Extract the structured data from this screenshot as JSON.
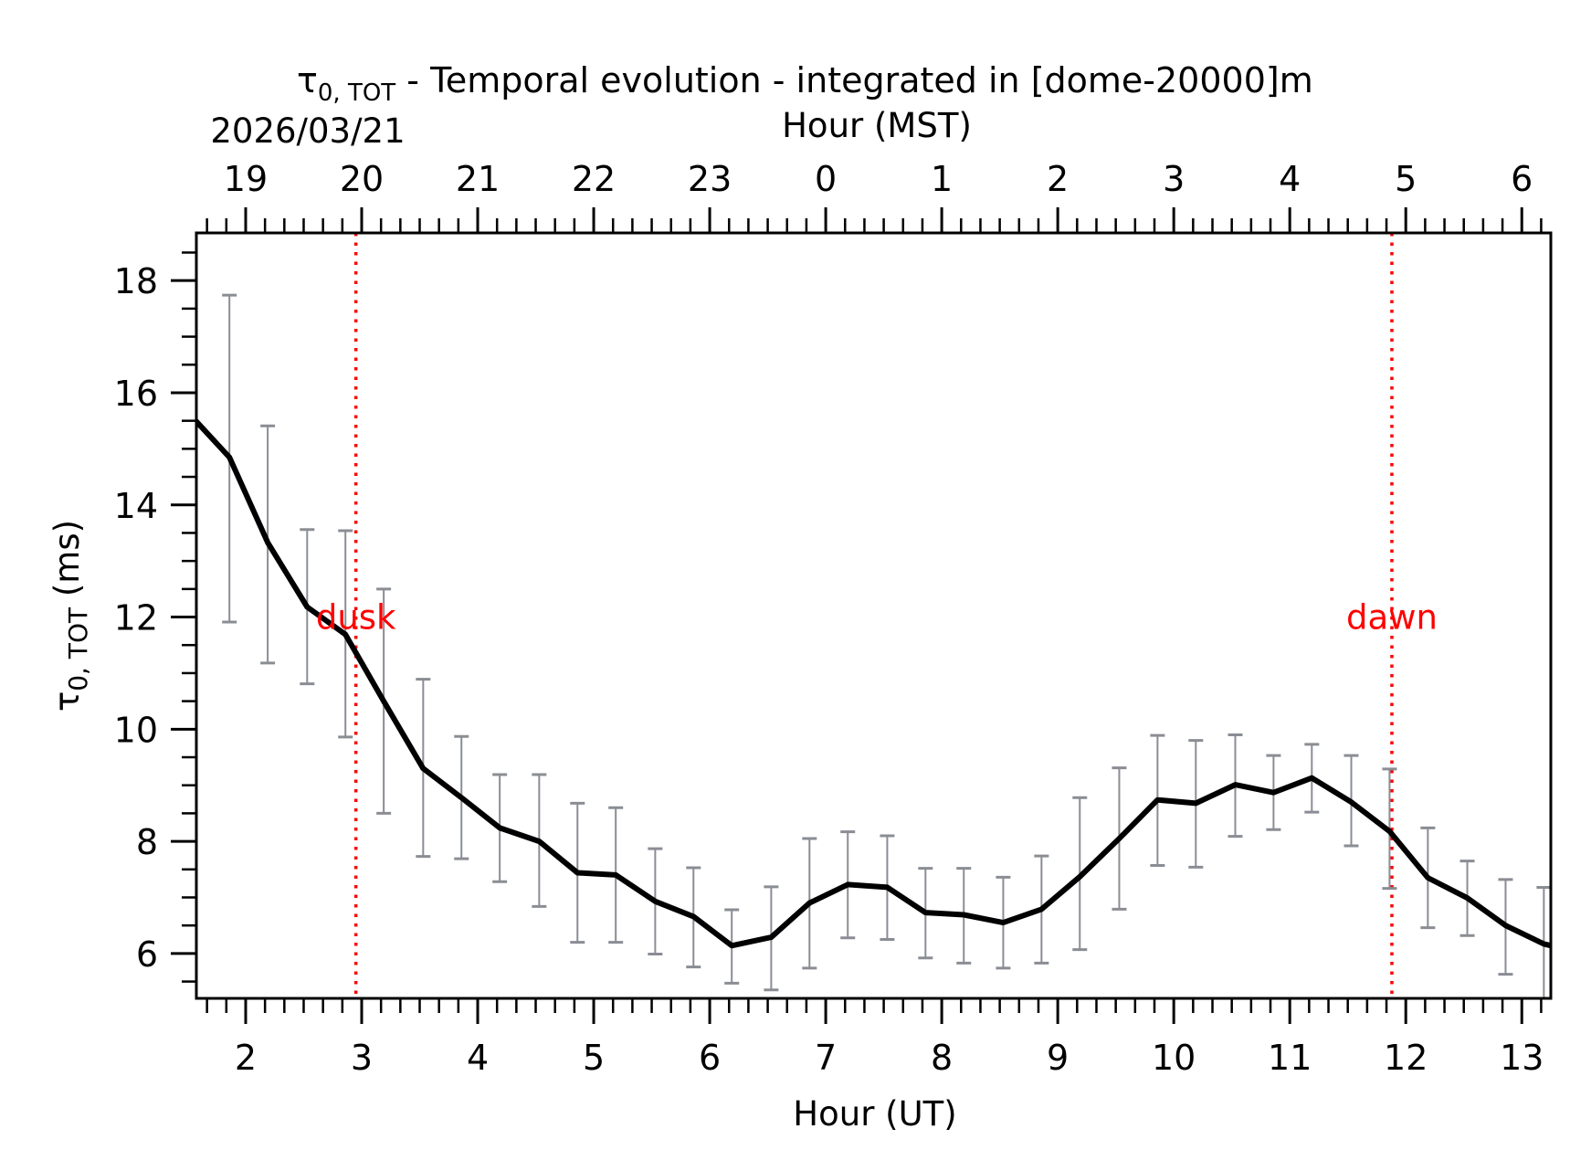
{
  "chart_data": {
    "type": "line",
    "title_symbol": "τ",
    "title_subscript": "0, TOT",
    "title_rest": " - Temporal evolution - integrated in [dome-20000]m",
    "date_label": "2026/03/21",
    "xlabel": "Hour (UT)",
    "x2label": "Hour (MST)",
    "ylabel_symbol": "τ",
    "ylabel_subscript": "0, TOT",
    "ylabel_rest": " (ms)",
    "xlim": [
      1.575,
      13.25
    ],
    "ylim": [
      5.2,
      18.85
    ],
    "x_ticks": [
      2,
      3,
      4,
      5,
      6,
      7,
      8,
      9,
      10,
      11,
      12,
      13
    ],
    "x_tick_labels": [
      "2",
      "3",
      "4",
      "5",
      "6",
      "7",
      "8",
      "9",
      "10",
      "11",
      "12",
      "13"
    ],
    "x2_ticks_ut": [
      2,
      3,
      4,
      5,
      6,
      7,
      8,
      9,
      10,
      11,
      12,
      13
    ],
    "x2_tick_labels": [
      "19",
      "20",
      "21",
      "22",
      "23",
      "0",
      "1",
      "2",
      "3",
      "4",
      "5",
      "6"
    ],
    "y_ticks": [
      6,
      8,
      10,
      12,
      14,
      16,
      18
    ],
    "y_tick_labels": [
      "6",
      "8",
      "10",
      "12",
      "14",
      "16",
      "18"
    ],
    "grid": false,
    "series": [
      {
        "name": "tau0_tot",
        "color": "#000000",
        "x": [
          1.525,
          1.86,
          2.19,
          2.53,
          2.86,
          3.19,
          3.53,
          3.86,
          4.19,
          4.53,
          4.86,
          5.19,
          5.53,
          5.86,
          6.19,
          6.53,
          6.86,
          7.19,
          7.53,
          7.86,
          8.19,
          8.53,
          8.86,
          9.19,
          9.53,
          9.86,
          10.19,
          10.53,
          10.86,
          11.19,
          11.53,
          11.86,
          12.19,
          12.53,
          12.86,
          13.19,
          13.53
        ],
        "y": [
          15.6,
          14.85,
          13.33,
          12.18,
          11.69,
          10.5,
          9.3,
          8.78,
          8.24,
          8.0,
          7.44,
          7.4,
          6.93,
          6.66,
          6.14,
          6.29,
          6.9,
          7.23,
          7.18,
          6.73,
          6.69,
          6.55,
          6.79,
          7.37,
          8.05,
          8.74,
          8.68,
          9.01,
          8.87,
          9.13,
          8.7,
          8.18,
          7.35,
          6.99,
          6.5,
          6.17,
          6.0
        ]
      }
    ],
    "error_bars": {
      "color": "#8a8d94",
      "x": [
        1.86,
        2.19,
        2.53,
        2.86,
        3.19,
        3.53,
        3.86,
        4.19,
        4.53,
        4.86,
        5.19,
        5.53,
        5.86,
        6.19,
        6.53,
        6.86,
        7.19,
        7.53,
        7.86,
        8.19,
        8.53,
        8.86,
        9.19,
        9.53,
        9.86,
        10.19,
        10.53,
        10.86,
        11.19,
        11.53,
        11.86,
        12.19,
        12.53,
        12.86,
        13.19
      ],
      "upper": [
        17.74,
        15.41,
        13.56,
        13.54,
        12.5,
        10.89,
        9.87,
        9.19,
        9.19,
        8.68,
        8.6,
        7.87,
        7.53,
        6.78,
        7.19,
        8.05,
        8.17,
        8.1,
        7.52,
        7.52,
        7.36,
        7.74,
        8.78,
        9.31,
        9.89,
        9.8,
        9.9,
        9.53,
        9.73,
        9.53,
        9.29,
        8.24,
        7.65,
        7.32,
        7.18
      ],
      "lower": [
        11.91,
        11.18,
        10.81,
        9.86,
        8.5,
        7.73,
        7.69,
        7.28,
        6.84,
        6.2,
        6.2,
        5.99,
        5.76,
        5.47,
        5.35,
        5.74,
        6.28,
        6.25,
        5.92,
        5.83,
        5.74,
        5.83,
        6.07,
        6.79,
        7.57,
        7.54,
        8.09,
        8.21,
        8.52,
        7.92,
        7.16,
        6.46,
        6.32,
        5.63,
        5.15
      ]
    },
    "vlines": [
      {
        "x": 2.95,
        "label": "dusk",
        "label_y": 12.0,
        "color": "#ff0000",
        "style": "dotted"
      },
      {
        "x": 11.88,
        "label": "dawn",
        "label_y": 12.0,
        "color": "#ff0000",
        "style": "dotted"
      }
    ]
  }
}
